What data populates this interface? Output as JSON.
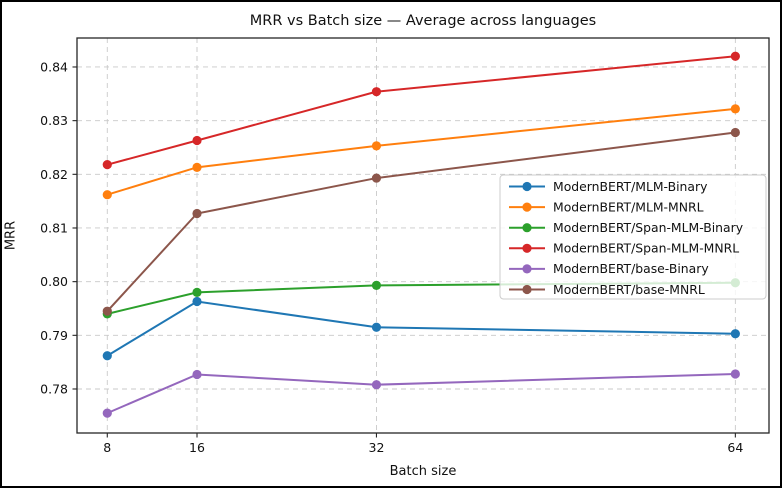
{
  "figure": {
    "title": "MRR vs Batch size — Average across languages",
    "xlabel": "Batch size",
    "ylabel": "MRR"
  },
  "chart_data": {
    "type": "line",
    "title": "MRR vs Batch size — Average across languages",
    "xlabel": "Batch size",
    "ylabel": "MRR",
    "x": [
      8,
      16,
      32,
      64
    ],
    "xtick_labels": [
      "8",
      "16",
      "32",
      "64"
    ],
    "yticks": [
      0.78,
      0.79,
      0.8,
      0.81,
      0.82,
      0.83,
      0.84
    ],
    "xlim": [
      5.3,
      67.0
    ],
    "ylim": [
      0.7718,
      0.8454
    ],
    "grid": true,
    "grid_style": "dashed",
    "legend_position": "center-right",
    "series": [
      {
        "name": "ModernBERT/MLM-Binary",
        "color": "#1f77b4",
        "values": [
          0.7862,
          0.7963,
          0.7915,
          0.7903
        ]
      },
      {
        "name": "ModernBERT/MLM-MNRL",
        "color": "#ff7f0e",
        "values": [
          0.8162,
          0.8213,
          0.8253,
          0.8322
        ]
      },
      {
        "name": "ModernBERT/Span-MLM-Binary",
        "color": "#2ca02c",
        "values": [
          0.794,
          0.798,
          0.7993,
          0.7998
        ]
      },
      {
        "name": "ModernBERT/Span-MLM-MNRL",
        "color": "#d62728",
        "values": [
          0.8218,
          0.8263,
          0.8354,
          0.842
        ]
      },
      {
        "name": "ModernBERT/base-Binary",
        "color": "#9467bd",
        "values": [
          0.7755,
          0.7827,
          0.7808,
          0.7828
        ]
      },
      {
        "name": "ModernBERT/base-MNRL",
        "color": "#8c564b",
        "values": [
          0.7945,
          0.8127,
          0.8193,
          0.8278
        ]
      }
    ]
  }
}
